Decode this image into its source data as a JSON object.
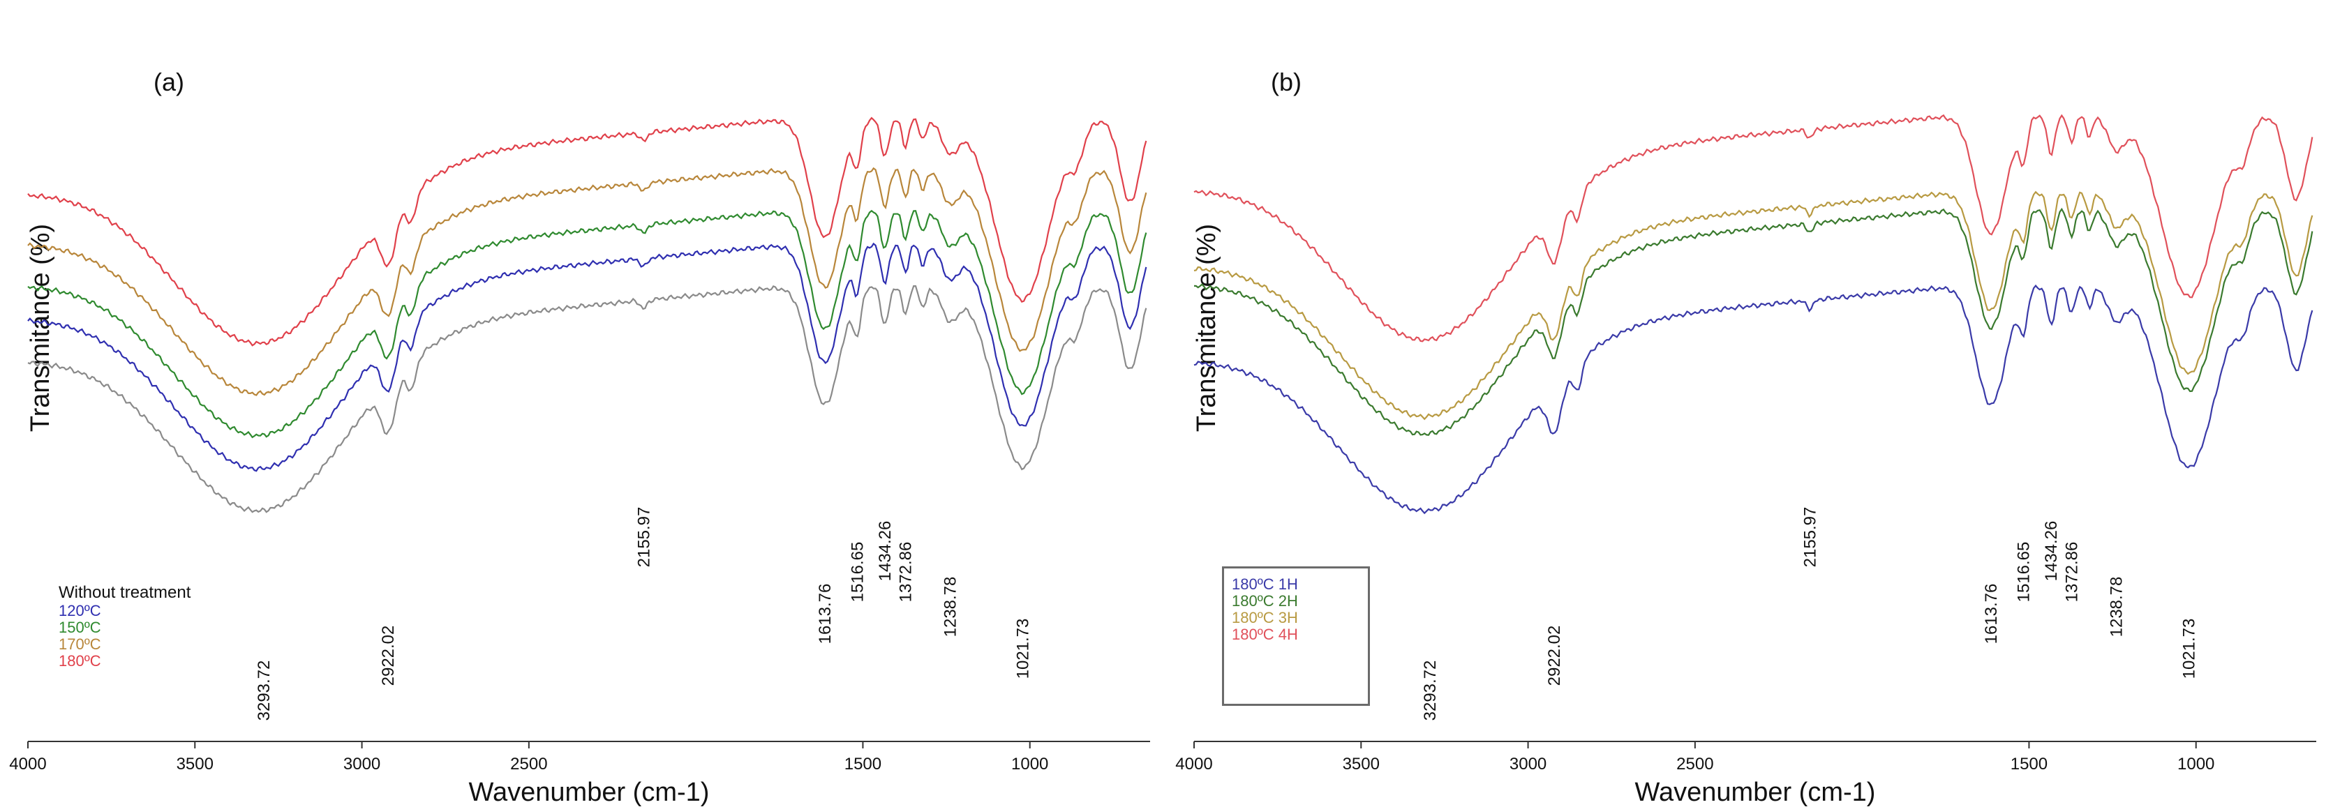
{
  "chart_data": [
    {
      "type": "line",
      "panel_label": "(a)",
      "xlabel": "Wavenumber (cm-1)",
      "ylabel": "Transmitance (%)",
      "xlim": [
        4000,
        640
      ],
      "x_reversed": true,
      "x_ticks": [
        "4000",
        "3500",
        "3000",
        "2500",
        "1500",
        "1000"
      ],
      "grid": false,
      "legend_placement": "bottom-left",
      "legend_header": "Without treatment",
      "series": [
        {
          "name": "",
          "color": "#8a8a8a",
          "offset": 0
        },
        {
          "name": "120ºC",
          "color": "#2f2fb0",
          "offset": 60
        },
        {
          "name": "150ºC",
          "color": "#2f8a2f",
          "offset": 108
        },
        {
          "name": "170ºC",
          "color": "#b8863a",
          "offset": 168
        },
        {
          "name": "180ºC",
          "color": "#e0404a",
          "offset": 240
        }
      ],
      "annotations": [
        "3293.72",
        "2922.02",
        "2155.97",
        "1613.76",
        "1516.65",
        "1434.26",
        "1372.86",
        "1238.78",
        "1021.73"
      ]
    },
    {
      "type": "line",
      "panel_label": "(b)",
      "xlabel": "Wavenumber (cm-1)",
      "ylabel": "Transmitance (%)",
      "xlim": [
        4000,
        640
      ],
      "x_reversed": true,
      "x_ticks": [
        "4000",
        "3500",
        "3000",
        "2500",
        "1500",
        "1000"
      ],
      "grid": false,
      "legend_placement": "bottom-left",
      "series": [
        {
          "name": "180ºC 1H",
          "color": "#3a3aa8",
          "offset": 0
        },
        {
          "name": "180ºC 2H",
          "color": "#3a7a2e",
          "offset": 110
        },
        {
          "name": "180ºC 3H",
          "color": "#b89a42",
          "offset": 135
        },
        {
          "name": "180ºC 4H",
          "color": "#e0505a",
          "offset": 245
        }
      ],
      "annotations": [
        "3293.72",
        "2922.02",
        "2155.97",
        "1613.76",
        "1516.65",
        "1434.26",
        "1372.86",
        "1238.78",
        "1021.73"
      ]
    }
  ]
}
